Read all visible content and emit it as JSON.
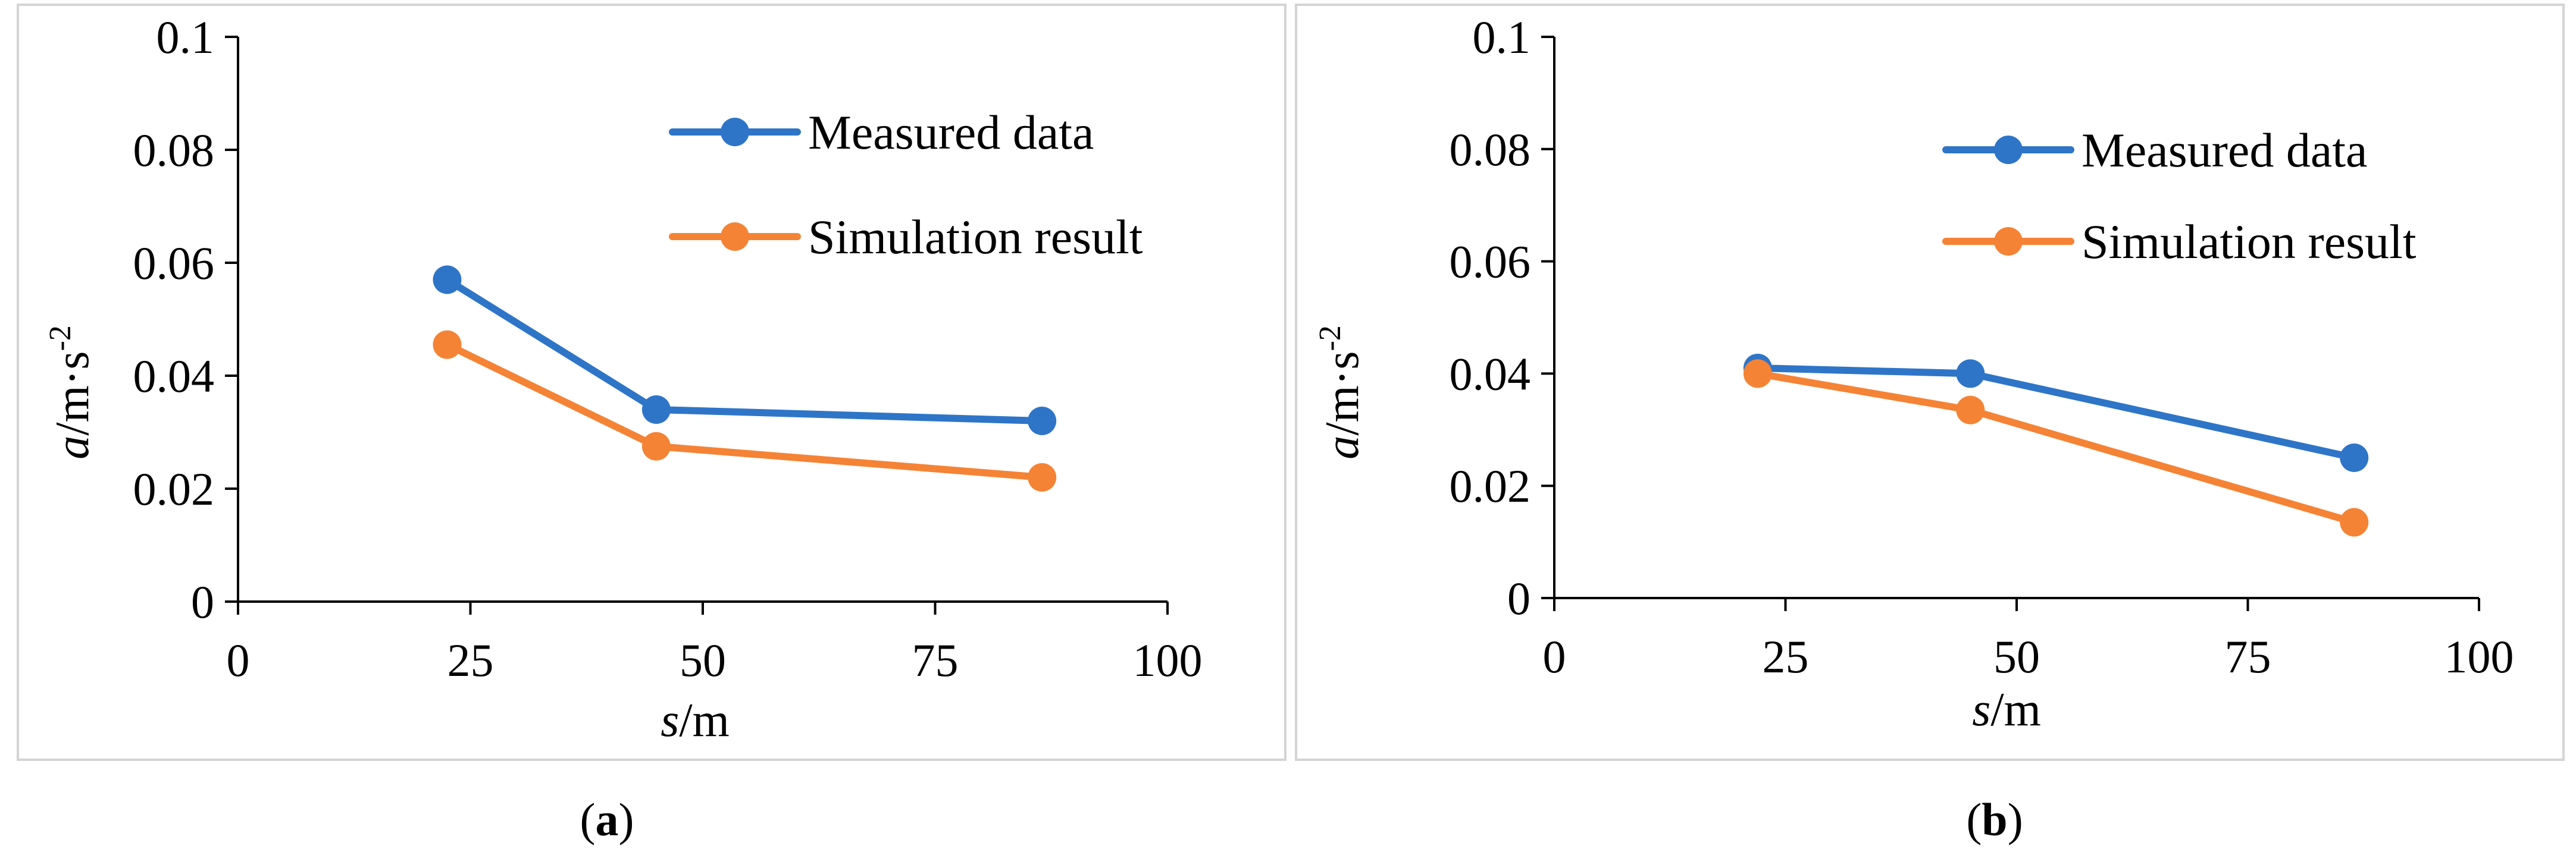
{
  "colors": {
    "measured": "#2E75C8",
    "simulation": "#F58335",
    "axis": "#000000",
    "frame": "#D4D4D4"
  },
  "panels": [
    {
      "caption_letter": "a",
      "caption_open": "(",
      "caption_close": ")",
      "xlabel_var": "s",
      "xlabel_unit": "/m",
      "ylabel_var": "a",
      "ylabel_unit": "/m·s",
      "ylabel_exp": "-2"
    },
    {
      "caption_letter": "b",
      "caption_open": "(",
      "caption_close": ")",
      "xlabel_var": "s",
      "xlabel_unit": "/m",
      "ylabel_var": "a",
      "ylabel_unit": "/m·s",
      "ylabel_exp": "-2"
    }
  ],
  "chart_data": [
    {
      "type": "line",
      "title": "",
      "xlabel": "s/m",
      "ylabel": "a/m·s-2",
      "xlim": [
        0,
        100
      ],
      "ylim": [
        0,
        0.1
      ],
      "x_ticks": [
        "0",
        "25",
        "50",
        "75",
        "100"
      ],
      "y_ticks": [
        "0",
        "0.02",
        "0.04",
        "0.06",
        "0.08",
        "0.1"
      ],
      "legend": "top-right",
      "series": [
        {
          "name": "Measured data",
          "x": [
            22.5,
            45,
            86.5
          ],
          "values": [
            0.057,
            0.034,
            0.032
          ]
        },
        {
          "name": "Simulation result",
          "x": [
            22.5,
            45,
            86.5
          ],
          "values": [
            0.0455,
            0.0275,
            0.022
          ]
        }
      ]
    },
    {
      "type": "line",
      "title": "",
      "xlabel": "s/m",
      "ylabel": "a/m·s-2",
      "xlim": [
        0,
        100
      ],
      "ylim": [
        0,
        0.1
      ],
      "x_ticks": [
        "0",
        "25",
        "50",
        "75",
        "100"
      ],
      "y_ticks": [
        "0",
        "0.02",
        "0.04",
        "0.06",
        "0.08",
        "0.1"
      ],
      "legend": "top-right",
      "series": [
        {
          "name": "Measured data",
          "x": [
            22,
            45,
            86.5
          ],
          "values": [
            0.041,
            0.04,
            0.025
          ]
        },
        {
          "name": "Simulation result",
          "x": [
            22,
            45,
            86.5
          ],
          "values": [
            0.04,
            0.0335,
            0.0135
          ]
        }
      ]
    }
  ]
}
